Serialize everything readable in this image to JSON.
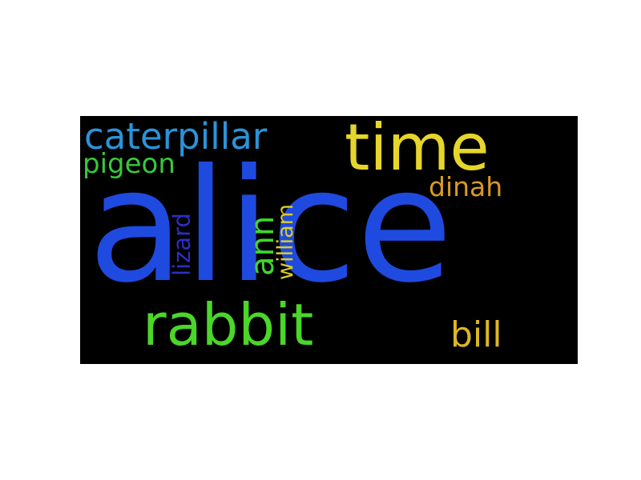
{
  "wordcloud": {
    "background": "#000000",
    "words": {
      "alice": {
        "text": "alice",
        "color": "#1f4ae0"
      },
      "time": {
        "text": "time",
        "color": "#e6d52a"
      },
      "caterpillar": {
        "text": "caterpillar",
        "color": "#2b93d8"
      },
      "pigeon": {
        "text": "pigeon",
        "color": "#35c93a"
      },
      "rabbit": {
        "text": "rabbit",
        "color": "#4bd62a"
      },
      "bill": {
        "text": "bill",
        "color": "#dcb624"
      },
      "dinah": {
        "text": "dinah",
        "color": "#d99a24"
      },
      "ann": {
        "text": "ann",
        "color": "#42d62d"
      },
      "william": {
        "text": "william",
        "color": "#d7cc2a"
      },
      "lizard": {
        "text": "lizard",
        "color": "#2b2fc7"
      }
    }
  }
}
